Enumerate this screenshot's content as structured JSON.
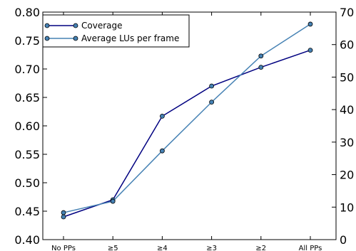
{
  "chart_data": {
    "type": "line",
    "categories": [
      "No PPs",
      "≥5",
      "≥4",
      "≥3",
      "≥2",
      "All PPs"
    ],
    "series": [
      {
        "name": "Coverage",
        "axis": "left",
        "color": "#000080",
        "values": [
          0.44,
          0.47,
          0.617,
          0.67,
          0.703,
          0.733
        ]
      },
      {
        "name": "Average LUs per frame",
        "axis": "right",
        "color": "#4682b4",
        "values": [
          8.3,
          11.8,
          27.3,
          42.3,
          56.5,
          66.3
        ]
      }
    ],
    "y_left": {
      "min": 0.4,
      "max": 0.8,
      "ticks": [
        "0.40",
        "0.45",
        "0.50",
        "0.55",
        "0.60",
        "0.65",
        "0.70",
        "0.75",
        "0.80"
      ]
    },
    "y_right": {
      "min": 0,
      "max": 70,
      "ticks": [
        "0",
        "10",
        "20",
        "30",
        "40",
        "50",
        "60",
        "70"
      ]
    },
    "grid": false,
    "legend_position": "top-left",
    "marker_color": "#4682b4"
  }
}
